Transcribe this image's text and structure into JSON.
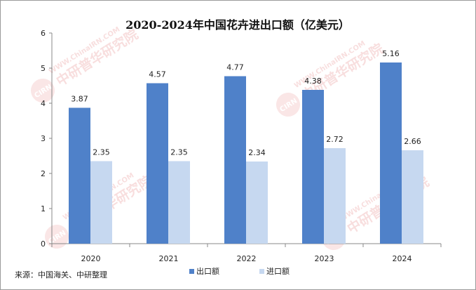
{
  "chart_data": {
    "type": "bar",
    "title": "2020-2024年中国花卉进出口额（亿美元）",
    "categories": [
      "2020",
      "2021",
      "2022",
      "2023",
      "2024"
    ],
    "series": [
      {
        "name": "出口额",
        "values": [
          3.87,
          4.57,
          4.77,
          4.38,
          5.16
        ]
      },
      {
        "name": "进口额",
        "values": [
          2.35,
          2.35,
          2.34,
          2.72,
          2.66
        ]
      }
    ],
    "ylim": [
      0,
      6
    ],
    "yticks": [
      "0",
      "1",
      "2",
      "3",
      "4",
      "5",
      "6"
    ],
    "xlabel": "",
    "ylabel": "",
    "grid": false,
    "legend_position": "bottom"
  },
  "colors": {
    "export": "#4f81c9",
    "import": "#c6d8f0",
    "axis": "#888888",
    "text": "#222222"
  },
  "source_note": "来源：中国海关、中研整理",
  "watermark": {
    "logo_text": "CIRN",
    "brand": "中研普华研究院",
    "url": "WWW.ChinaIRN.COM"
  }
}
